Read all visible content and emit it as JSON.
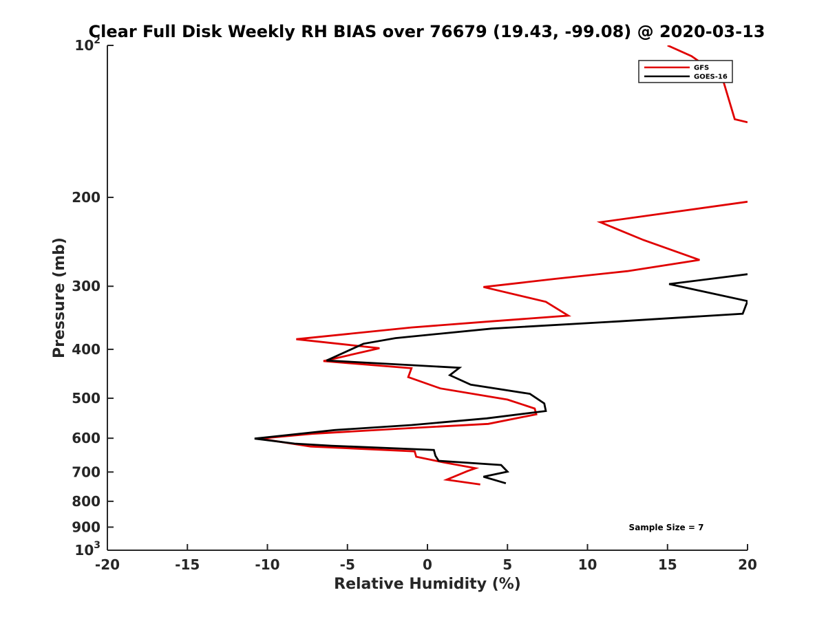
{
  "chart_data": {
    "type": "line",
    "title": "Clear Full Disk Weekly RH BIAS over 76679 (19.43, -99.08) @ 2020-03-13",
    "xlabel": "Relative Humidity (%)",
    "ylabel": "Pressure (mb)",
    "xlim": [
      -20,
      20
    ],
    "ylim": [
      100,
      1000
    ],
    "yscale": "log",
    "y_reversed": true,
    "x_ticks": [
      "-20",
      "-15",
      "-10",
      "-5",
      "0",
      "5",
      "10",
      "15",
      "20"
    ],
    "y_ticks": [
      {
        "value": 100,
        "base": "10",
        "exp": "2"
      },
      {
        "value": 200,
        "label": "200"
      },
      {
        "value": 300,
        "label": "300"
      },
      {
        "value": 400,
        "label": "400"
      },
      {
        "value": 500,
        "label": "500"
      },
      {
        "value": 600,
        "label": "600"
      },
      {
        "value": 700,
        "label": "700"
      },
      {
        "value": 800,
        "label": "800"
      },
      {
        "value": 900,
        "label": "900"
      },
      {
        "value": 1000,
        "base": "10",
        "exp": "3"
      }
    ],
    "legend_position": "top-right",
    "annotation": "Sample Size = 7",
    "series": [
      {
        "name": "GFS",
        "color": "#e00000",
        "points": [
          [
            15.0,
            100
          ],
          [
            16.5,
            105
          ],
          [
            18.3,
            115
          ],
          [
            18.5,
            118
          ],
          [
            19.2,
            140
          ],
          [
            20.0,
            142
          ],
          [
            null,
            null
          ],
          [
            20.0,
            204
          ],
          [
            10.8,
            224
          ],
          [
            13.5,
            243
          ],
          [
            17.0,
            266
          ],
          [
            12.5,
            280
          ],
          [
            8.0,
            290
          ],
          [
            3.5,
            301
          ],
          [
            7.4,
            322
          ],
          [
            8.8,
            343
          ],
          [
            4.0,
            352
          ],
          [
            -1.0,
            362
          ],
          [
            -8.2,
            382
          ],
          [
            -3.0,
            398
          ],
          [
            -6.5,
            422
          ],
          [
            -1.0,
            436
          ],
          [
            -1.2,
            454
          ],
          [
            0.8,
            478
          ],
          [
            5.0,
            503
          ],
          [
            6.7,
            524
          ],
          [
            6.8,
            538
          ],
          [
            3.8,
            562
          ],
          [
            -2.0,
            575
          ],
          [
            -7.2,
            588
          ],
          [
            -10.5,
            601
          ],
          [
            -7.3,
            623
          ],
          [
            -0.8,
            637
          ],
          [
            -0.7,
            653
          ],
          [
            1.0,
            670
          ],
          [
            3.0,
            688
          ],
          [
            2.5,
            697
          ],
          [
            1.2,
            725
          ],
          [
            3.3,
            741
          ]
        ]
      },
      {
        "name": "GOES-16",
        "color": "#000000",
        "points": [
          [
            20.0,
            284
          ],
          [
            15.1,
            297
          ],
          [
            20.0,
            321
          ],
          [
            19.7,
            340
          ],
          [
            12.0,
            352
          ],
          [
            4.0,
            364
          ],
          [
            -2.0,
            380
          ],
          [
            -4.0,
            390
          ],
          [
            -6.3,
            421
          ],
          [
            2.0,
            435
          ],
          [
            1.4,
            450
          ],
          [
            2.7,
            470
          ],
          [
            6.4,
            490
          ],
          [
            7.3,
            512
          ],
          [
            7.4,
            530
          ],
          [
            3.7,
            548
          ],
          [
            -1.0,
            565
          ],
          [
            -5.8,
            578
          ],
          [
            -10.8,
            601
          ],
          [
            -8.3,
            615
          ],
          [
            -6.0,
            621
          ],
          [
            0.4,
            633
          ],
          [
            0.5,
            650
          ],
          [
            0.7,
            665
          ],
          [
            4.6,
            678
          ],
          [
            5.0,
            699
          ],
          [
            3.5,
            715
          ],
          [
            4.9,
            737
          ]
        ]
      }
    ]
  }
}
